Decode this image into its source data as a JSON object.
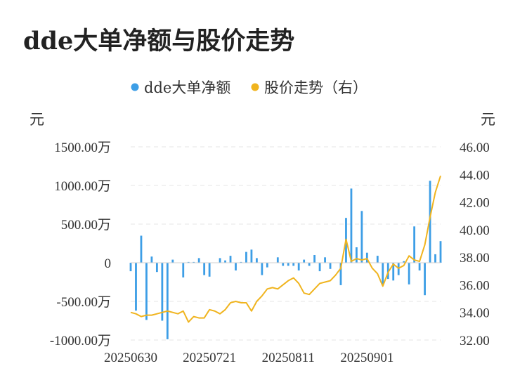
{
  "title": "dde大单净额与股价走势",
  "colors": {
    "bar": "#3d9ee6",
    "line": "#f0b41e",
    "grid": "#e6e6e6",
    "text": "#333333"
  },
  "chart_data": {
    "type": "bar+line",
    "left_unit": "元",
    "right_unit": "元",
    "legend_position": "top-center",
    "grid": true,
    "left_axis": {
      "ylim": [
        -1000,
        1500
      ],
      "ticks": [
        1500,
        1000,
        500,
        0,
        -500,
        -1000
      ],
      "tick_labels": [
        "1500.00万",
        "1000.00万",
        "500.00万",
        "0",
        "-500.00万",
        "-1000.00万"
      ]
    },
    "right_axis": {
      "ylim": [
        32,
        46
      ],
      "ticks": [
        46,
        44,
        42,
        40,
        38,
        36,
        34,
        32
      ],
      "tick_labels": [
        "46.00",
        "44.00",
        "42.00",
        "40.00",
        "38.00",
        "36.00",
        "34.00",
        "32.00"
      ]
    },
    "x_tick_labels": [
      "20250630",
      "20250721",
      "20250811",
      "20250901"
    ],
    "x_tick_positions": [
      0,
      15,
      30,
      45
    ],
    "series": [
      {
        "name": "dde大单净额",
        "type": "bar",
        "axis": "left",
        "values": [
          -110,
          -620,
          350,
          -740,
          80,
          -120,
          -750,
          -990,
          40,
          0,
          -190,
          10,
          10,
          60,
          -160,
          -180,
          0,
          60,
          30,
          90,
          -100,
          10,
          140,
          170,
          60,
          -160,
          -60,
          0,
          70,
          -40,
          -40,
          -40,
          -100,
          40,
          -40,
          100,
          -110,
          70,
          -80,
          0,
          -290,
          580,
          960,
          200,
          670,
          130,
          0,
          90,
          -280,
          -210,
          -230,
          -160,
          20,
          -280,
          470,
          -100,
          -420,
          1060,
          110,
          280
        ]
      },
      {
        "name": "股价走势（右）",
        "type": "line",
        "axis": "right",
        "values": [
          34.0,
          33.9,
          33.7,
          33.8,
          33.8,
          33.9,
          34.0,
          34.1,
          34.0,
          33.9,
          34.1,
          33.3,
          33.7,
          33.6,
          33.6,
          34.2,
          34.1,
          33.9,
          34.2,
          34.7,
          34.8,
          34.7,
          34.7,
          34.1,
          34.8,
          35.2,
          35.7,
          35.8,
          35.7,
          36.0,
          36.3,
          36.5,
          36.1,
          35.4,
          35.3,
          35.7,
          36.1,
          36.2,
          36.3,
          36.7,
          37.2,
          39.3,
          37.7,
          37.9,
          37.8,
          37.9,
          37.2,
          36.8,
          35.9,
          36.9,
          37.5,
          37.2,
          37.4,
          38.1,
          37.8,
          37.7,
          38.9,
          40.9,
          42.7,
          43.9
        ]
      }
    ]
  }
}
